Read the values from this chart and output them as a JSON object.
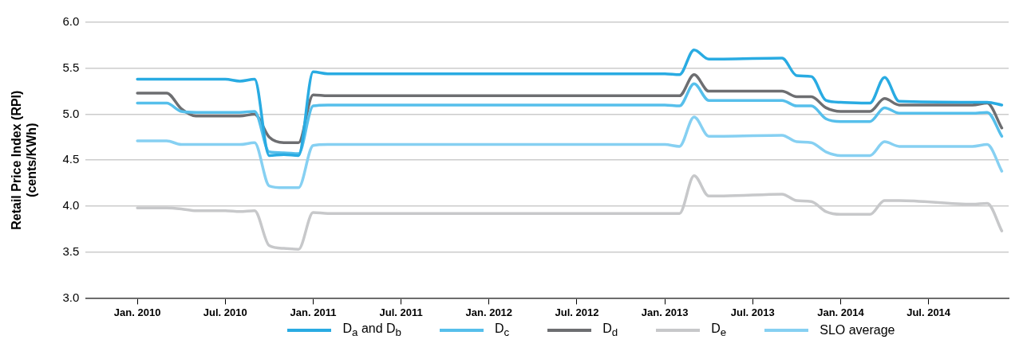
{
  "chart_data": {
    "type": "line",
    "ylabel": "Retail Price Index (RPI)\n(cents/KWh)",
    "x": [
      "2010-01",
      "2010-03",
      "2010-04",
      "2010-05",
      "2010-07",
      "2010-08",
      "2010-09",
      "2010-10",
      "2010-11",
      "2010-12",
      "2011-01",
      "2011-02",
      "2013-01",
      "2013-02",
      "2013-03",
      "2013-04",
      "2013-05",
      "2013-09",
      "2013-10",
      "2013-11",
      "2013-12",
      "2014-01",
      "2014-03",
      "2014-04",
      "2014-05",
      "2014-10",
      "2014-11",
      "2014-12"
    ],
    "series": [
      {
        "name": "D$_{a}$ and D$_{b}$",
        "color": "#29abe2",
        "values": [
          5.38,
          5.38,
          5.38,
          5.38,
          5.38,
          5.36,
          5.38,
          4.55,
          4.56,
          4.55,
          5.46,
          5.44,
          5.44,
          5.43,
          5.7,
          5.6,
          5.6,
          5.61,
          5.42,
          5.41,
          5.15,
          5.13,
          5.12,
          5.4,
          5.14,
          5.13,
          5.13,
          5.1
        ]
      },
      {
        "name": "D$_{c}$",
        "color": "#56bfeb",
        "values": [
          5.12,
          5.12,
          5.03,
          5.02,
          5.02,
          5.02,
          5.03,
          4.59,
          4.58,
          4.57,
          5.09,
          5.1,
          5.1,
          5.09,
          5.33,
          5.15,
          5.15,
          5.15,
          5.09,
          5.09,
          4.95,
          4.92,
          4.92,
          5.07,
          5.01,
          5.01,
          5.02,
          4.76
        ]
      },
      {
        "name": "D$_{d}$",
        "color": "#6d6e71",
        "values": [
          5.23,
          5.23,
          5.06,
          4.98,
          4.98,
          4.98,
          5.0,
          4.75,
          4.69,
          4.69,
          5.21,
          5.2,
          5.2,
          5.2,
          5.43,
          5.25,
          5.25,
          5.25,
          5.19,
          5.19,
          5.07,
          5.03,
          5.03,
          5.17,
          5.1,
          5.1,
          5.12,
          4.85
        ]
      },
      {
        "name": "D$_{e}$",
        "color": "#c7c8ca",
        "values": [
          3.98,
          3.98,
          3.97,
          3.95,
          3.95,
          3.94,
          3.95,
          3.57,
          3.54,
          3.53,
          3.93,
          3.92,
          3.92,
          3.92,
          4.33,
          4.11,
          4.11,
          4.13,
          4.06,
          4.05,
          3.94,
          3.91,
          3.91,
          4.06,
          4.06,
          4.02,
          4.03,
          3.73
        ]
      },
      {
        "name": "SLO average",
        "color": "#86d0f2",
        "values": [
          4.71,
          4.71,
          4.67,
          4.67,
          4.67,
          4.67,
          4.69,
          4.22,
          4.2,
          4.2,
          4.66,
          4.67,
          4.67,
          4.65,
          4.97,
          4.76,
          4.76,
          4.77,
          4.7,
          4.69,
          4.59,
          4.55,
          4.55,
          4.7,
          4.65,
          4.65,
          4.67,
          4.38
        ]
      }
    ],
    "xlim": [
      "2009-09-15",
      "2014-12-15"
    ],
    "xticks": [
      {
        "value": "2010-01",
        "label": "Jan. 2010"
      },
      {
        "value": "2010-07",
        "label": "Jul. 2010"
      },
      {
        "value": "2011-01",
        "label": "Jan. 2011"
      },
      {
        "value": "2011-07",
        "label": "Jul. 2011"
      },
      {
        "value": "2012-01",
        "label": "Jan. 2012"
      },
      {
        "value": "2012-07",
        "label": "Jul. 2012"
      },
      {
        "value": "2013-01",
        "label": "Jan. 2013"
      },
      {
        "value": "2013-07",
        "label": "Jul. 2013"
      },
      {
        "value": "2014-01",
        "label": "Jan. 2014"
      },
      {
        "value": "2014-07",
        "label": "Jul. 2014"
      }
    ],
    "ylim": [
      3,
      6
    ],
    "yticks": [
      {
        "value": 3,
        "label": "3.0"
      },
      {
        "value": 3.5,
        "label": "3.5"
      },
      {
        "value": 4,
        "label": "4.0"
      },
      {
        "value": 4.5,
        "label": "4.5"
      },
      {
        "value": 5,
        "label": "5.0"
      },
      {
        "value": 5.5,
        "label": "5.5"
      },
      {
        "value": 6,
        "label": "6.0"
      }
    ],
    "grid": "y",
    "legend": "bottom",
    "marker": "none",
    "line_style": "solid"
  }
}
